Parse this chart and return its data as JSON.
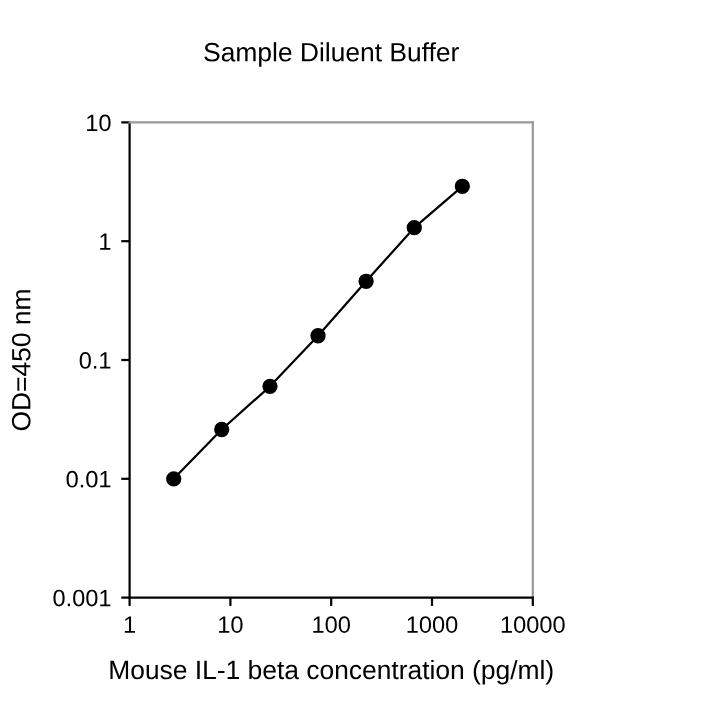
{
  "chart_data": {
    "type": "line",
    "title": "Sample Diluent Buffer",
    "xlabel": "Mouse IL-1 beta concentration (pg/ml)",
    "ylabel": "OD=450 nm",
    "x": [
      2.74,
      8.2,
      24.7,
      74,
      222,
      667,
      2000
    ],
    "series": [
      {
        "color": "#000000",
        "values": [
          0.01,
          0.026,
          0.06,
          0.16,
          0.46,
          1.3,
          2.9
        ]
      }
    ],
    "log": "xy",
    "xlim": [
      1,
      10000
    ],
    "ylim": [
      0.001,
      10
    ],
    "xticks": [
      1,
      10,
      100,
      1000,
      10000
    ],
    "yticks": [
      0.001,
      0.01,
      0.1,
      1,
      10
    ],
    "marker": "circle",
    "line_style": "solid",
    "grid": false,
    "legend": false
  }
}
